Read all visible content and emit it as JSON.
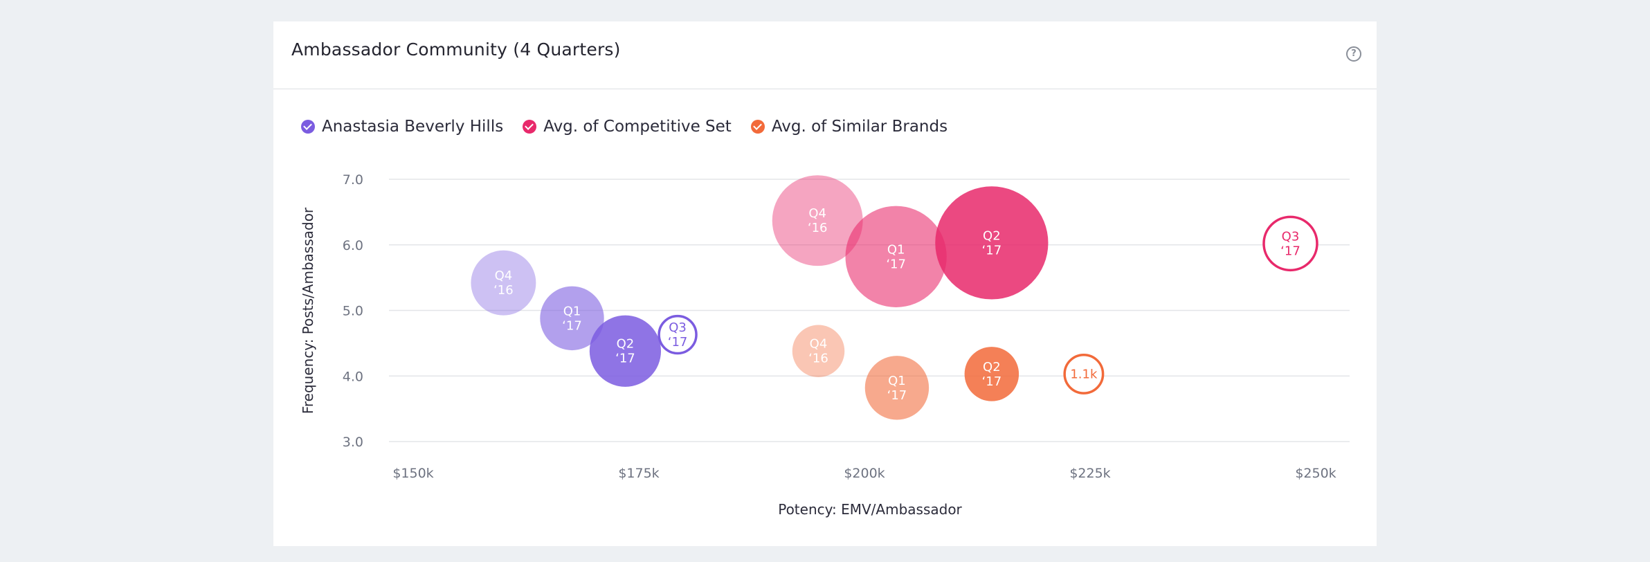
{
  "card": {
    "title": "Ambassador Community (4 Quarters)",
    "help_icon": "question-circle-icon"
  },
  "colors": {
    "brand": "#7b5ce0",
    "competitive": "#e8296b",
    "similar": "#f26a3a"
  },
  "chart_data": {
    "type": "scatter",
    "title": "Ambassador Community (4 Quarters)",
    "xlabel": "Potency: EMV/Ambassador",
    "ylabel": "Frequency: Posts/Ambassador",
    "xlim": [
      150000,
      250000
    ],
    "ylim": [
      3.0,
      7.0
    ],
    "x_ticks": [
      150000,
      175000,
      200000,
      225000,
      250000
    ],
    "x_tick_labels": [
      "$150k",
      "$175k",
      "$200k",
      "$225k",
      "$250k"
    ],
    "y_ticks": [
      3.0,
      4.0,
      5.0,
      6.0,
      7.0
    ],
    "y_tick_labels": [
      "3.0",
      "4.0",
      "5.0",
      "6.0",
      "7.0"
    ],
    "grid": "horizontal",
    "legend_position": "top-left",
    "series": [
      {
        "name": "Anastasia Beverly Hills",
        "color": "#7b5ce0",
        "points": [
          {
            "x": 160000,
            "y": 5.42,
            "size": 6.1,
            "label": [
              "Q4",
              "‘16"
            ],
            "opacity": 0.38,
            "style": "filled"
          },
          {
            "x": 167600,
            "y": 4.88,
            "size": 6.0,
            "label": [
              "Q1",
              "‘17"
            ],
            "opacity": 0.58,
            "style": "filled"
          },
          {
            "x": 173500,
            "y": 4.38,
            "size": 6.7,
            "label": [
              "Q2",
              "‘17"
            ],
            "opacity": 0.85,
            "style": "filled"
          },
          {
            "x": 179300,
            "y": 4.63,
            "size": 3.5,
            "label": [
              "Q3",
              "‘17"
            ],
            "opacity": 1,
            "style": "outline"
          }
        ]
      },
      {
        "name": "Avg. of Competitive Set",
        "color": "#e8296b",
        "points": [
          {
            "x": 194800,
            "y": 6.37,
            "size": 8.5,
            "label": [
              "Q4",
              "‘16"
            ],
            "opacity": 0.42,
            "style": "filled"
          },
          {
            "x": 203500,
            "y": 5.82,
            "size": 9.5,
            "label": [
              "Q1",
              "‘17"
            ],
            "opacity": 0.58,
            "style": "filled"
          },
          {
            "x": 214100,
            "y": 6.03,
            "size": 10.6,
            "label": [
              "Q2",
              "‘17"
            ],
            "opacity": 0.85,
            "style": "filled"
          },
          {
            "x": 247200,
            "y": 6.02,
            "size": 5.0,
            "label": [
              "Q3",
              "‘17"
            ],
            "opacity": 1,
            "style": "outline"
          }
        ]
      },
      {
        "name": "Avg. of Similar Brands",
        "color": "#f26a3a",
        "points": [
          {
            "x": 194900,
            "y": 4.38,
            "size": 4.9,
            "label": [
              "Q4",
              "‘16"
            ],
            "opacity": 0.38,
            "style": "filled"
          },
          {
            "x": 203600,
            "y": 3.82,
            "size": 6.0,
            "label": [
              "Q1",
              "‘17"
            ],
            "opacity": 0.58,
            "style": "filled"
          },
          {
            "x": 214100,
            "y": 4.03,
            "size": 5.1,
            "label": [
              "Q2",
              "‘17"
            ],
            "opacity": 0.85,
            "style": "filled"
          },
          {
            "x": 224300,
            "y": 4.03,
            "size": 3.6,
            "label": [
              "1.1k"
            ],
            "opacity": 1,
            "style": "outline"
          }
        ]
      }
    ]
  }
}
